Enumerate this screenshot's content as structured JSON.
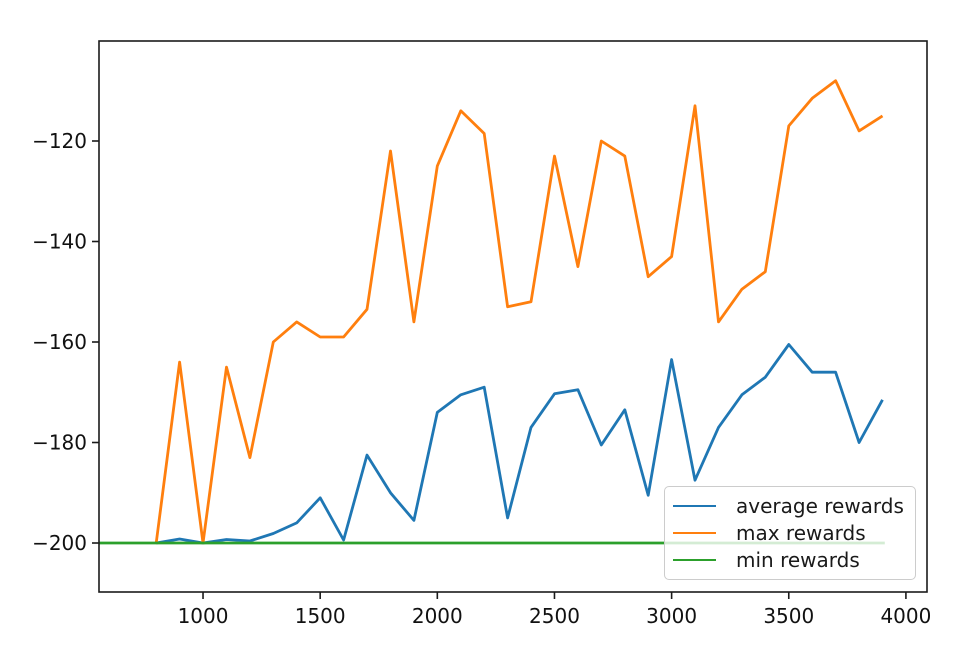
{
  "chart_data": {
    "type": "line",
    "title": "",
    "xlabel": "",
    "ylabel": "",
    "x": [
      800,
      900,
      1000,
      1100,
      1200,
      1300,
      1400,
      1500,
      1600,
      1700,
      1800,
      1900,
      2000,
      2100,
      2200,
      2300,
      2400,
      2500,
      2600,
      2700,
      2800,
      2900,
      3000,
      3100,
      3200,
      3300,
      3400,
      3500,
      3600,
      3700,
      3800,
      3900
    ],
    "series": [
      {
        "name": "average rewards",
        "color": "#1f77b4",
        "values": [
          -200,
          -199.2,
          -200,
          -199.3,
          -199.6,
          -198.1,
          -196,
          -191,
          -199.4,
          -182.5,
          -190,
          -195.5,
          -174,
          -170.5,
          -169,
          -195,
          -177,
          -170.3,
          -169.5,
          -180.5,
          -173.5,
          -190.5,
          -163.5,
          -187.5,
          -177,
          -170.5,
          -167,
          -160.5,
          -166,
          -166,
          -180,
          -171.5
        ]
      },
      {
        "name": "max rewards",
        "color": "#ff7f0e",
        "values": [
          -200,
          -164,
          -200,
          -165,
          -183,
          -160,
          -156,
          -159,
          -159,
          -153.5,
          -122,
          -156,
          -125,
          -114,
          -118.5,
          -153,
          -152,
          -123,
          -145,
          -120,
          -123,
          -147,
          -143,
          -113,
          -156,
          -149.5,
          -146,
          -117,
          -111.5,
          -108,
          -118,
          -115
        ]
      },
      {
        "name": "min rewards",
        "color": "#2ca02c",
        "x": [
          556,
          3910
        ],
        "values": [
          -200,
          -200
        ]
      }
    ],
    "xlim": [
      556,
      4090
    ],
    "ylim": [
      -209.75,
      -100.1
    ],
    "xticks": [
      1000,
      1500,
      2000,
      2500,
      3000,
      3500,
      4000
    ],
    "yticks": [
      -120,
      -140,
      -160,
      -180,
      -200
    ],
    "grid": false,
    "legend_position": "lower right",
    "legend_labels": [
      "average rewards",
      "max rewards",
      "min rewards"
    ],
    "line_width": 2.8,
    "spine_color": "#1a1a1a",
    "tick_color": "#111111"
  }
}
